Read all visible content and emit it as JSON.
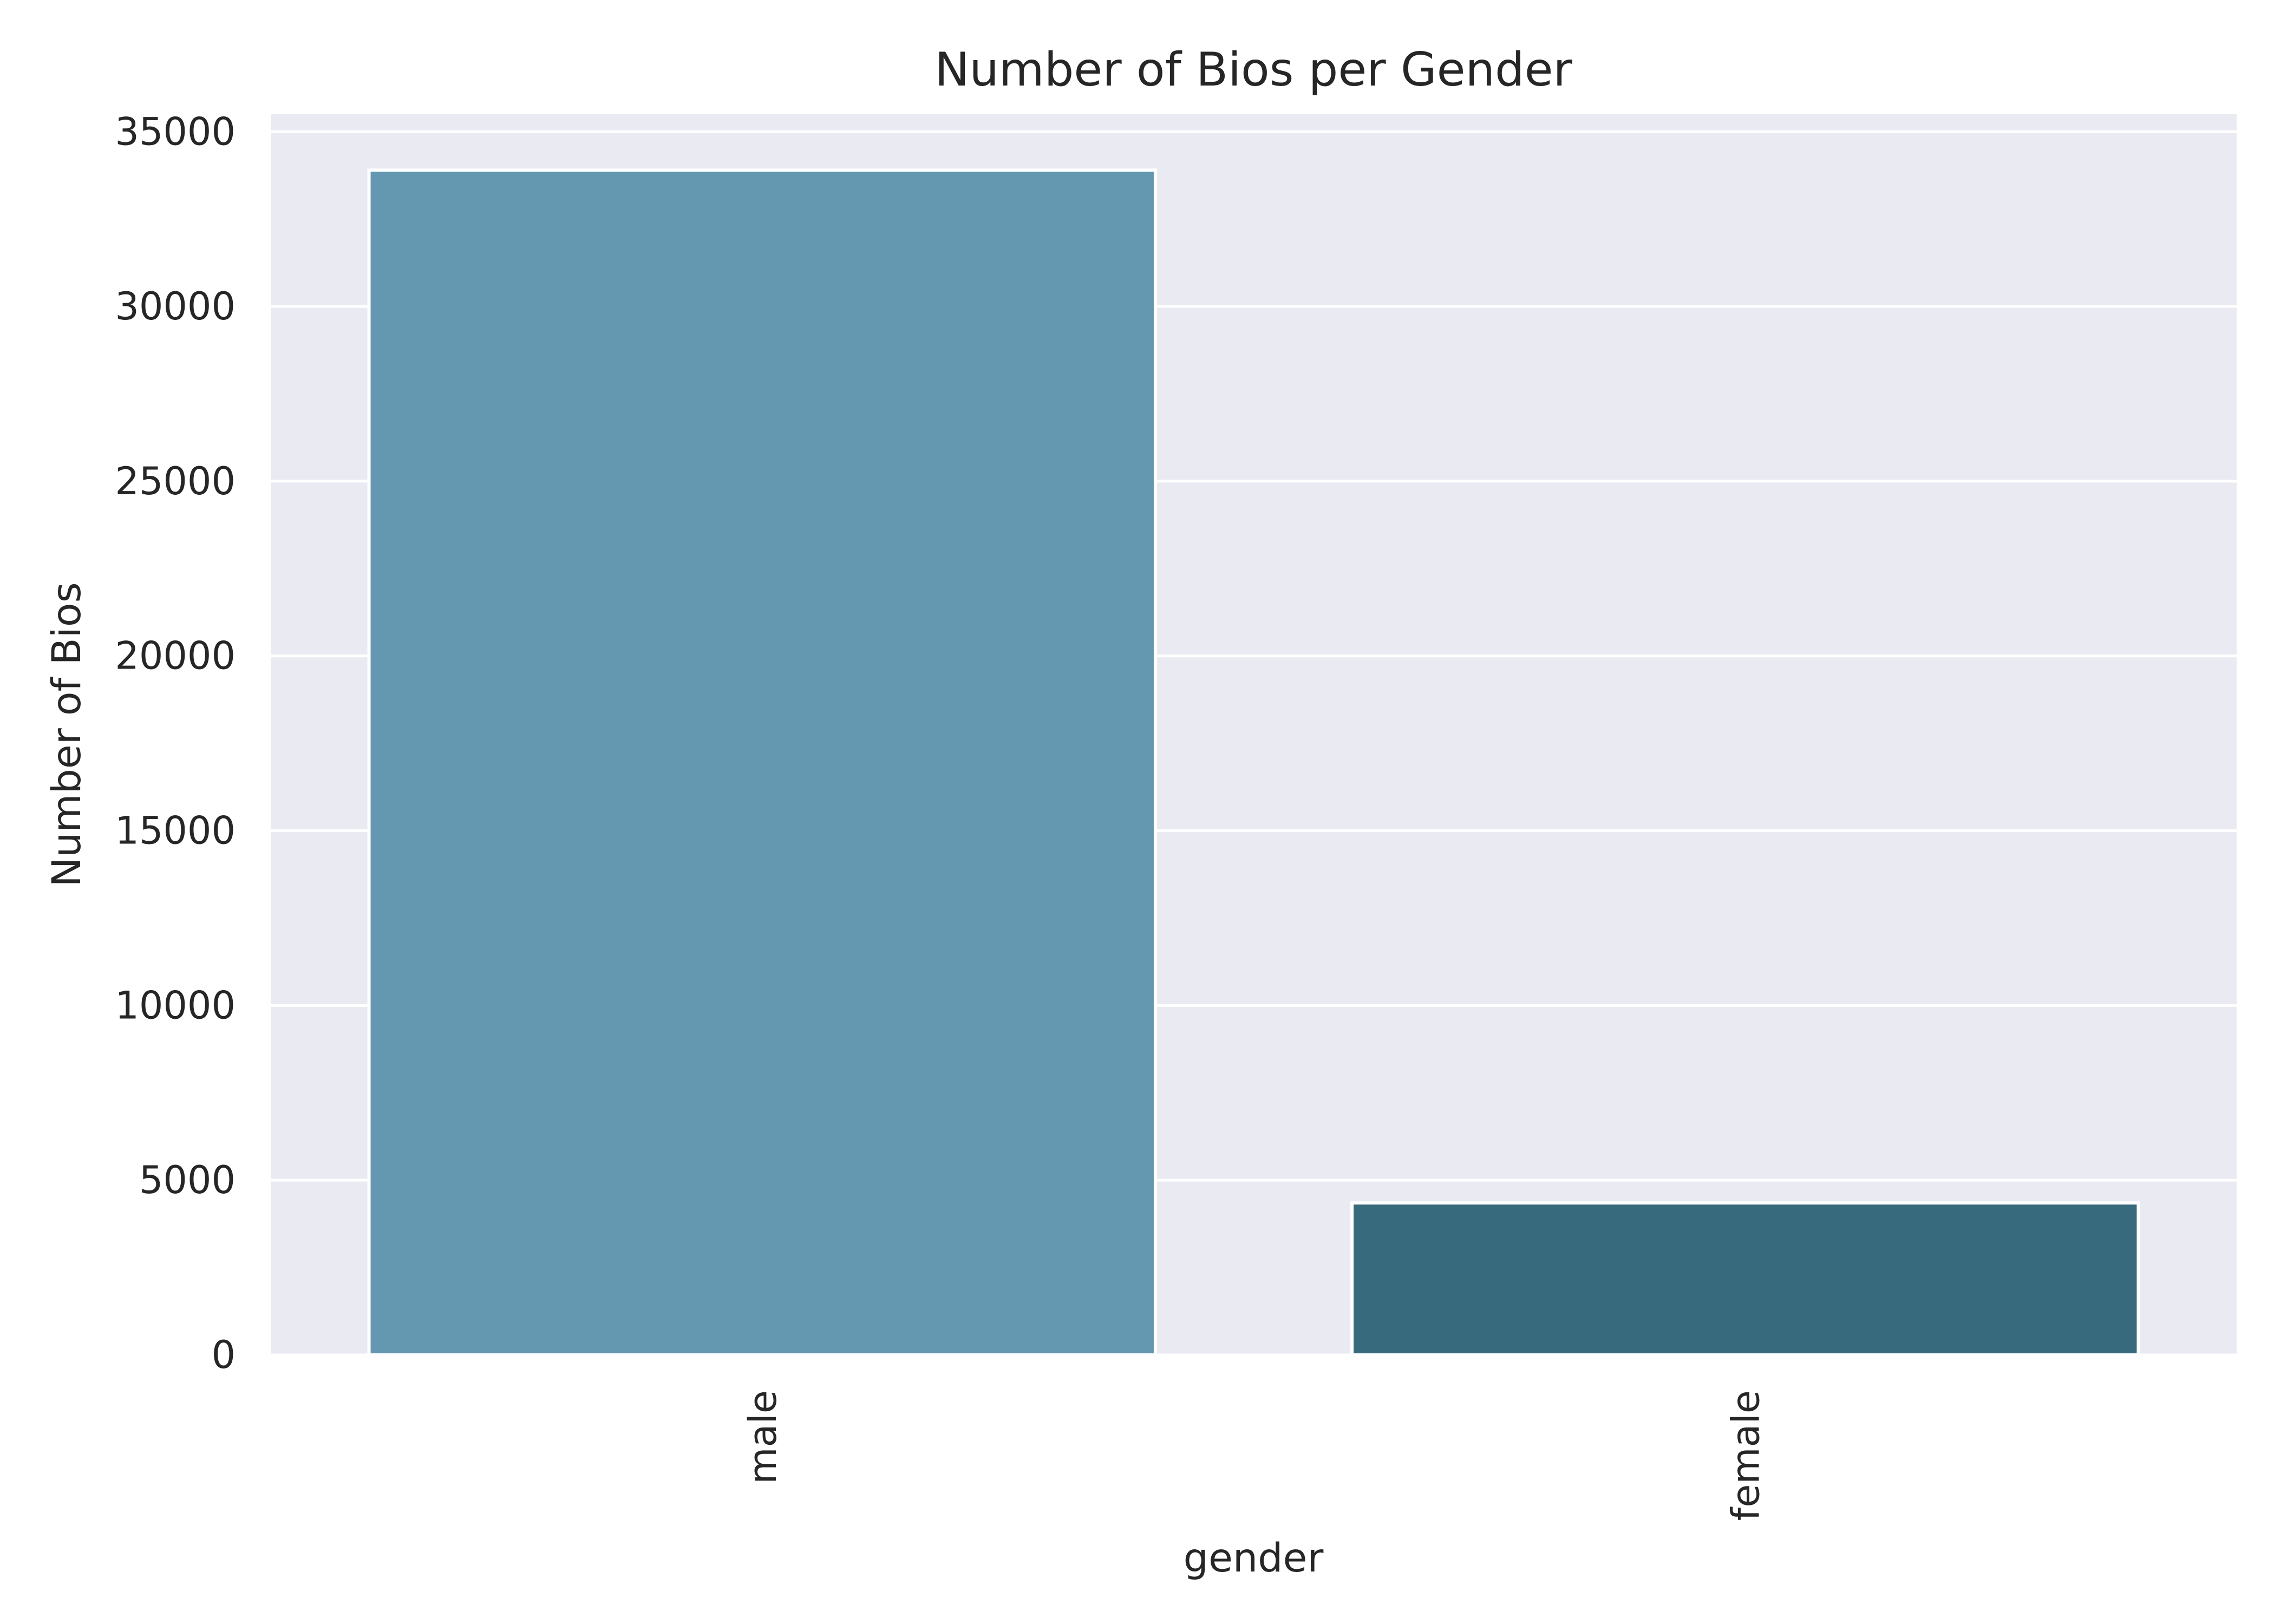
{
  "chart_data": {
    "type": "bar",
    "title": "Number of Bios per Gender",
    "xlabel": "gender",
    "ylabel": "Number of Bios",
    "categories": [
      "male",
      "female"
    ],
    "values": [
      33900,
      4350
    ],
    "ylim": [
      0,
      35500
    ],
    "yticks": [
      0,
      5000,
      10000,
      15000,
      20000,
      25000,
      30000,
      35000
    ],
    "ytick_labels": [
      "0",
      "5000",
      "10000",
      "15000",
      "20000",
      "25000",
      "30000",
      "35000"
    ],
    "bar_colors": [
      "#6398b0",
      "#366a7c"
    ],
    "background_color": "#eaeaf2",
    "grid_color": "#ffffff",
    "grid": true,
    "x_tick_rotation": "vertical"
  }
}
